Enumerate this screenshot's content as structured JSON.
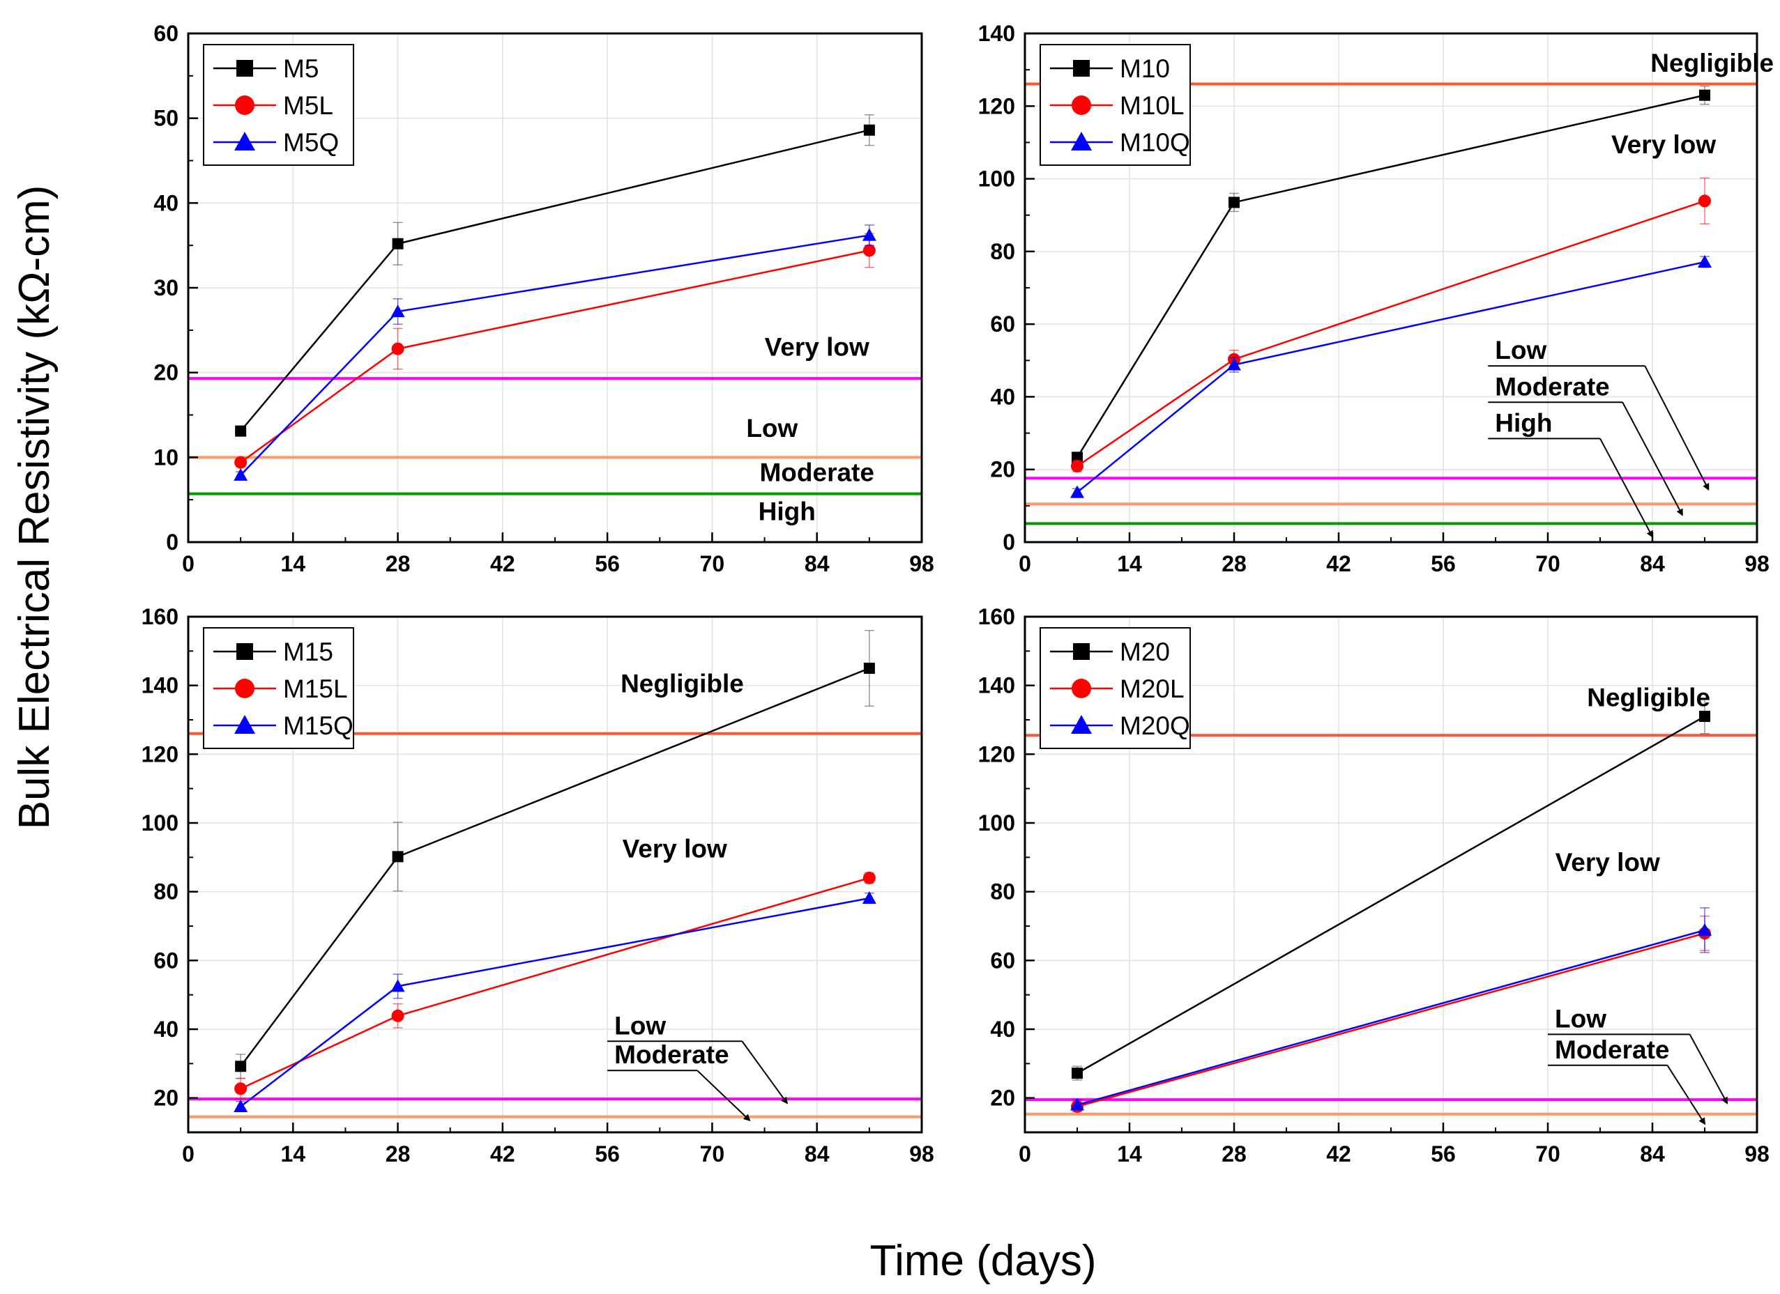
{
  "figure": {
    "ylabel": "Bulk Electrical Resistivity (kΩ-cm)",
    "xlabel": "Time (days)"
  },
  "chart_data": [
    {
      "type": "line",
      "panel": "top-left",
      "xlim": [
        0,
        98
      ],
      "ylim": [
        0,
        60
      ],
      "xticks": [
        0,
        14,
        28,
        42,
        56,
        70,
        84,
        98
      ],
      "yticks": [
        0,
        10,
        20,
        30,
        40,
        50,
        60
      ],
      "x": [
        7,
        28,
        91
      ],
      "series": [
        {
          "name": "M5",
          "color": "#000000",
          "marker": "square",
          "values": [
            13.1,
            35.2,
            48.6
          ],
          "errors": [
            0.5,
            2.5,
            1.8
          ]
        },
        {
          "name": "M5L",
          "color": "#ff0000",
          "marker": "circle",
          "values": [
            9.4,
            22.8,
            34.4
          ],
          "errors": [
            0.5,
            2.4,
            2.0
          ]
        },
        {
          "name": "M5Q",
          "color": "#0000ff",
          "marker": "triangle",
          "values": [
            7.9,
            27.2,
            36.2
          ],
          "errors": [
            0.4,
            1.5,
            1.2
          ]
        }
      ],
      "thresholds": [
        {
          "value": 19.3,
          "color": "#ff00ff"
        },
        {
          "value": 10.0,
          "color": "#ff9966"
        },
        {
          "value": 5.7,
          "color": "#009900"
        }
      ],
      "zone_labels": [
        {
          "text": "Very low",
          "y": 22,
          "x": 84,
          "anchor": "middle"
        },
        {
          "text": "Low",
          "y": 12.4,
          "x": 78,
          "anchor": "middle"
        },
        {
          "text": "Moderate",
          "y": 7.2,
          "x": 84,
          "anchor": "middle"
        },
        {
          "text": "High",
          "y": 2.6,
          "x": 80,
          "anchor": "middle"
        }
      ],
      "annotations": []
    },
    {
      "type": "line",
      "panel": "top-right",
      "xlim": [
        0,
        98
      ],
      "ylim": [
        0,
        140
      ],
      "xticks": [
        0,
        14,
        28,
        42,
        56,
        70,
        84,
        98
      ],
      "yticks": [
        0,
        20,
        40,
        60,
        80,
        100,
        120,
        140
      ],
      "x": [
        7,
        28,
        91
      ],
      "series": [
        {
          "name": "M10",
          "color": "#000000",
          "marker": "square",
          "values": [
            23.3,
            93.5,
            123.0
          ],
          "errors": [
            1.5,
            2.5,
            2.5
          ]
        },
        {
          "name": "M10L",
          "color": "#ff0000",
          "marker": "circle",
          "values": [
            20.9,
            50.3,
            93.9
          ],
          "errors": [
            1.5,
            2.5,
            6.3
          ]
        },
        {
          "name": "M10Q",
          "color": "#0000ff",
          "marker": "triangle",
          "values": [
            13.7,
            48.8,
            77.1
          ],
          "errors": [
            1.0,
            2.0,
            1.5
          ]
        }
      ],
      "thresholds": [
        {
          "value": 126.1,
          "color": "#ff5533"
        },
        {
          "value": 17.6,
          "color": "#ff00ff"
        },
        {
          "value": 10.5,
          "color": "#ff9966"
        },
        {
          "value": 5.1,
          "color": "#009900"
        }
      ],
      "zone_labels": [
        {
          "text": "Negligible",
          "y": 129.5,
          "x": 92,
          "anchor": "middle"
        },
        {
          "text": "Very low",
          "y": 107,
          "x": 85.5,
          "anchor": "middle"
        }
      ],
      "annotations": [
        {
          "text": "Low",
          "x0": 62,
          "y0": 48.5,
          "x1": 83,
          "y1": 48.5,
          "tx": 91.5,
          "ty": 14.5
        },
        {
          "text": "Moderate",
          "x0": 62,
          "y0": 38.5,
          "x1": 80,
          "y1": 38.5,
          "tx": 88,
          "ty": 7.5
        },
        {
          "text": "High",
          "x0": 62,
          "y0": 28.5,
          "x1": 77,
          "y1": 28.5,
          "tx": 84,
          "ty": 1.5
        }
      ]
    },
    {
      "type": "line",
      "panel": "bottom-left",
      "xlim": [
        0,
        98
      ],
      "ylim": [
        10,
        160
      ],
      "xticks": [
        0,
        14,
        28,
        42,
        56,
        70,
        84,
        98
      ],
      "yticks": [
        20,
        40,
        60,
        80,
        100,
        120,
        140,
        160
      ],
      "x": [
        7,
        28,
        91
      ],
      "series": [
        {
          "name": "M15",
          "color": "#000000",
          "marker": "square",
          "values": [
            29.2,
            90.2,
            145.0
          ],
          "errors": [
            3.5,
            10.0,
            11.0
          ]
        },
        {
          "name": "M15L",
          "color": "#ff0000",
          "marker": "circle",
          "values": [
            22.7,
            43.9,
            84.0
          ],
          "errors": [
            3.0,
            3.5,
            1.5
          ]
        },
        {
          "name": "M15Q",
          "color": "#0000ff",
          "marker": "triangle",
          "values": [
            17.5,
            52.5,
            78.1
          ],
          "errors": [
            1.5,
            3.5,
            1.5
          ]
        }
      ],
      "thresholds": [
        {
          "value": 126.0,
          "color": "#ff5533"
        },
        {
          "value": 19.7,
          "color": "#ff00ff"
        },
        {
          "value": 14.5,
          "color": "#ff9966"
        }
      ],
      "zone_labels": [
        {
          "text": "Negligible",
          "y": 138,
          "x": 66,
          "anchor": "middle"
        },
        {
          "text": "Very low",
          "y": 90,
          "x": 65,
          "anchor": "middle"
        }
      ],
      "annotations": [
        {
          "text": "Low",
          "x0": 56,
          "y0": 36.5,
          "x1": 74,
          "y1": 36.5,
          "tx": 80,
          "ty": 18.5
        },
        {
          "text": "Moderate",
          "x0": 56,
          "y0": 28.0,
          "x1": 68,
          "y1": 28.0,
          "tx": 75,
          "ty": 13.5
        }
      ]
    },
    {
      "type": "line",
      "panel": "bottom-right",
      "xlim": [
        0,
        98
      ],
      "ylim": [
        10,
        160
      ],
      "xticks": [
        0,
        14,
        28,
        42,
        56,
        70,
        84,
        98
      ],
      "yticks": [
        20,
        40,
        60,
        80,
        100,
        120,
        140,
        160
      ],
      "x": [
        7,
        91
      ],
      "series": [
        {
          "name": "M20",
          "color": "#000000",
          "marker": "square",
          "values": [
            27.2,
            131.0
          ],
          "errors": [
            2.0,
            5.0
          ]
        },
        {
          "name": "M20L",
          "color": "#ff0000",
          "marker": "circle",
          "values": [
            17.5,
            67.9
          ],
          "errors": [
            1.5,
            5.0
          ]
        },
        {
          "name": "M20Q",
          "color": "#0000ff",
          "marker": "triangle",
          "values": [
            18.0,
            68.8
          ],
          "errors": [
            1.5,
            6.5
          ]
        }
      ],
      "thresholds": [
        {
          "value": 125.5,
          "color": "#ff5533"
        },
        {
          "value": 19.5,
          "color": "#ff00ff"
        },
        {
          "value": 15.3,
          "color": "#ff9966"
        }
      ],
      "zone_labels": [
        {
          "text": "Negligible",
          "y": 134,
          "x": 83.5,
          "anchor": "middle"
        },
        {
          "text": "Very low",
          "y": 86,
          "x": 78,
          "anchor": "middle"
        }
      ],
      "annotations": [
        {
          "text": "Low",
          "x0": 70,
          "y0": 38.5,
          "x1": 89,
          "y1": 38.5,
          "tx": 94,
          "ty": 18.5
        },
        {
          "text": "Moderate",
          "x0": 70,
          "y0": 29.5,
          "x1": 86,
          "y1": 29.5,
          "tx": 91,
          "ty": 12.5
        }
      ]
    }
  ]
}
